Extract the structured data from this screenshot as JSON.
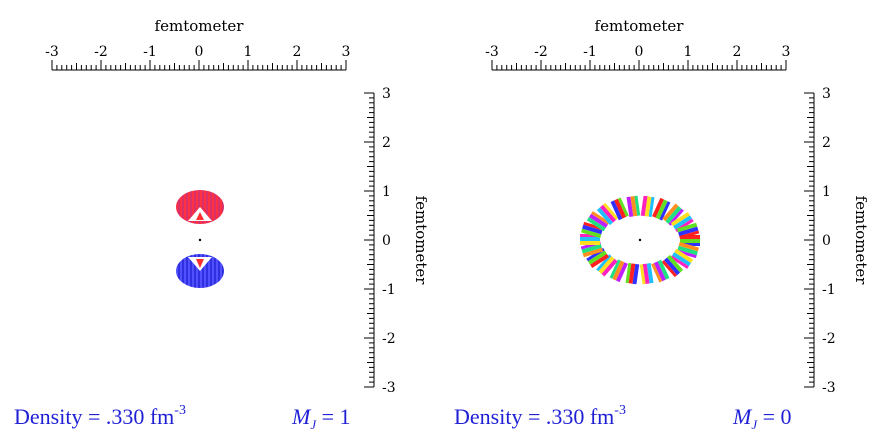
{
  "panels": [
    {
      "top_axis_label": "femtometer",
      "right_axis_label": "femtometer",
      "x_ticks": [
        "-3",
        "-2",
        "-1",
        "0",
        "1",
        "2",
        "3"
      ],
      "y_ticks": [
        "3",
        "2",
        "1",
        "0",
        "-1",
        "-2",
        "-3"
      ],
      "density_text": "Density = .330 fm",
      "density_exponent": "-3",
      "mj_letter": "M",
      "mj_sub": "J",
      "mj_value": " = 1",
      "shape": "two lobes along vertical axis (red top, blue bottom)"
    },
    {
      "top_axis_label": "femtometer",
      "right_axis_label": "femtometer",
      "x_ticks": [
        "-3",
        "-2",
        "-1",
        "0",
        "1",
        "2",
        "3"
      ],
      "y_ticks": [
        "3",
        "2",
        "1",
        "0",
        "-1",
        "-2",
        "-3"
      ],
      "density_text": "Density = .330 fm",
      "density_exponent": "-3",
      "mj_letter": "M",
      "mj_sub": "J",
      "mj_value": " = 0",
      "shape": "torus ring in equatorial plane, rainbow colored"
    }
  ],
  "colors": {
    "caption": "#1f1fd6",
    "lobe_top": "#e0305a",
    "lobe_bottom": "#3a3ae0"
  }
}
